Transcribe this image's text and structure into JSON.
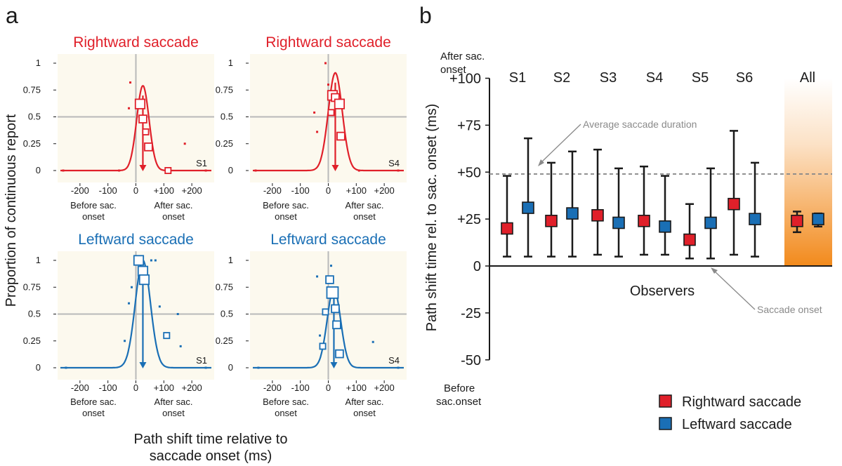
{
  "panel_a": {
    "letter": "a",
    "ylabel": "Proportion of continuous report",
    "xlabel_line1": "Path shift time relative to",
    "xlabel_line2": "saccade onset (ms)",
    "before_line1": "Before sac.",
    "before_line2": "onset",
    "after_line1": "After sac.",
    "after_line2": "onset"
  },
  "panel_b": {
    "letter": "b",
    "ylabel": "Path shift time rel. to sac. onset (ms)",
    "after_line1": "After sac.",
    "after_line2": "onset",
    "before_line1": "Before",
    "before_line2": "sac.onset",
    "xlabel": "Observers",
    "annotation_duration": "Average saccade duration",
    "annotation_onset": "Saccade onset",
    "legend_right": "Rightward saccade",
    "legend_left": "Leftward saccade"
  },
  "colors": {
    "rightward": "#e0202a",
    "leftward": "#1a6fb5",
    "panel_bg": "#fcf9ee",
    "all_gradient": "#f28a1c"
  },
  "chart_data": [
    {
      "type": "scatter",
      "title": "Rightward saccade",
      "observer": "S1",
      "xticks": [
        "-200",
        "-100",
        "0",
        "+100",
        "+200"
      ],
      "yticks": [
        "0",
        "0.25",
        "0.5",
        "0.75",
        "1"
      ],
      "xlim": [
        -280,
        280
      ],
      "ylim": [
        0,
        1
      ],
      "fit": {
        "peak_time": 25,
        "amplitude": 0.79,
        "sigma": 22
      },
      "points": [
        {
          "x": -260,
          "y": 0,
          "n": 1
        },
        {
          "x": -60,
          "y": 0,
          "n": 1
        },
        {
          "x": -20,
          "y": 0.82,
          "n": 1
        },
        {
          "x": -25,
          "y": 0.58,
          "n": 1
        },
        {
          "x": 15,
          "y": 0.62,
          "n": 4
        },
        {
          "x": 25,
          "y": 0.48,
          "n": 3
        },
        {
          "x": 35,
          "y": 0.36,
          "n": 2
        },
        {
          "x": 45,
          "y": 0.22,
          "n": 3
        },
        {
          "x": 115,
          "y": 0,
          "n": 2
        },
        {
          "x": 175,
          "y": 0.25,
          "n": 1
        },
        {
          "x": 250,
          "y": 0,
          "n": 1
        }
      ]
    },
    {
      "type": "scatter",
      "title": "Rightward saccade",
      "observer": "S4",
      "xticks": [
        "-200",
        "-100",
        "0",
        "+100",
        "+200"
      ],
      "yticks": [
        "0",
        "0.25",
        "0.5",
        "0.75",
        "1"
      ],
      "xlim": [
        -280,
        280
      ],
      "ylim": [
        0,
        1
      ],
      "fit": {
        "peak_time": 25,
        "amplitude": 0.91,
        "sigma": 25
      },
      "points": [
        {
          "x": -260,
          "y": 0,
          "n": 1
        },
        {
          "x": -50,
          "y": 0.54,
          "n": 1
        },
        {
          "x": -40,
          "y": 0.36,
          "n": 1
        },
        {
          "x": -10,
          "y": 1.0,
          "n": 1
        },
        {
          "x": 0,
          "y": 0.8,
          "n": 1
        },
        {
          "x": 10,
          "y": 0.54,
          "n": 2
        },
        {
          "x": 15,
          "y": 0.7,
          "n": 4
        },
        {
          "x": 25,
          "y": 0.68,
          "n": 3
        },
        {
          "x": 40,
          "y": 0.62,
          "n": 4
        },
        {
          "x": 45,
          "y": 0.32,
          "n": 3
        },
        {
          "x": 110,
          "y": 0,
          "n": 1
        },
        {
          "x": 250,
          "y": 0,
          "n": 1
        }
      ]
    },
    {
      "type": "scatter",
      "title": "Leftward saccade",
      "observer": "S1",
      "xticks": [
        "-200",
        "-100",
        "0",
        "+100",
        "+200"
      ],
      "yticks": [
        "0",
        "0.25",
        "0.5",
        "0.75",
        "1"
      ],
      "xlim": [
        -280,
        280
      ],
      "ylim": [
        0,
        1
      ],
      "fit": {
        "peak_time": 25,
        "amplitude": 1.0,
        "sigma": 27
      },
      "points": [
        {
          "x": -250,
          "y": 0,
          "n": 1
        },
        {
          "x": -40,
          "y": 0.25,
          "n": 1
        },
        {
          "x": -25,
          "y": 0.6,
          "n": 1
        },
        {
          "x": -15,
          "y": 0.75,
          "n": 1
        },
        {
          "x": 10,
          "y": 1.0,
          "n": 4
        },
        {
          "x": 25,
          "y": 0.9,
          "n": 4
        },
        {
          "x": 30,
          "y": 0.82,
          "n": 4
        },
        {
          "x": 55,
          "y": 1.0,
          "n": 1
        },
        {
          "x": 70,
          "y": 1.0,
          "n": 1
        },
        {
          "x": 85,
          "y": 0.57,
          "n": 1
        },
        {
          "x": 110,
          "y": 0.3,
          "n": 2
        },
        {
          "x": 150,
          "y": 0.5,
          "n": 1
        },
        {
          "x": 160,
          "y": 0.2,
          "n": 1
        },
        {
          "x": 250,
          "y": 0,
          "n": 1
        }
      ]
    },
    {
      "type": "scatter",
      "title": "Leftward saccade",
      "observer": "S4",
      "xticks": [
        "-200",
        "-100",
        "0",
        "+100",
        "+200"
      ],
      "yticks": [
        "0",
        "0.25",
        "0.5",
        "0.75",
        "1"
      ],
      "xlim": [
        -280,
        280
      ],
      "ylim": [
        0,
        1
      ],
      "fit": {
        "peak_time": 20,
        "amplitude": 0.74,
        "sigma": 24
      },
      "points": [
        {
          "x": -250,
          "y": 0,
          "n": 1
        },
        {
          "x": -40,
          "y": 0.85,
          "n": 1
        },
        {
          "x": -30,
          "y": 0.3,
          "n": 1
        },
        {
          "x": -20,
          "y": 0.2,
          "n": 2
        },
        {
          "x": -10,
          "y": 0.52,
          "n": 2
        },
        {
          "x": 5,
          "y": 0.82,
          "n": 3
        },
        {
          "x": 10,
          "y": 0.95,
          "n": 1
        },
        {
          "x": 15,
          "y": 0.7,
          "n": 5
        },
        {
          "x": 25,
          "y": 0.55,
          "n": 3
        },
        {
          "x": 30,
          "y": 0.4,
          "n": 3
        },
        {
          "x": 40,
          "y": 0.13,
          "n": 3
        },
        {
          "x": 160,
          "y": 0.24,
          "n": 1
        },
        {
          "x": 250,
          "y": 0,
          "n": 1
        }
      ]
    },
    {
      "type": "scatter",
      "title": "",
      "xlabel": "Observers",
      "ylabel": "Path shift time rel. to sac. onset (ms)",
      "categories": [
        "S1",
        "S2",
        "S3",
        "S4",
        "S5",
        "S6",
        "All"
      ],
      "yticks": [
        "-50",
        "-25",
        "0",
        "+25",
        "+50",
        "+75",
        "+100"
      ],
      "ylim": [
        -50,
        100
      ],
      "reference_lines": [
        {
          "y": 49,
          "label": "Average saccade duration"
        },
        {
          "y": 0,
          "label": "Saccade onset"
        }
      ],
      "series": [
        {
          "name": "Rightward saccade",
          "values": [
            20,
            24,
            27,
            24,
            14,
            33,
            24
          ],
          "ci_low": [
            5,
            5,
            6,
            6,
            4,
            6,
            18
          ],
          "ci_high": [
            48,
            55,
            62,
            53,
            33,
            72,
            29
          ]
        },
        {
          "name": "Leftward saccade",
          "values": [
            31,
            28,
            23,
            21,
            23,
            25,
            25
          ],
          "ci_low": [
            5,
            5,
            5,
            6,
            4,
            5,
            21
          ],
          "ci_high": [
            68,
            61,
            52,
            48,
            52,
            55,
            28
          ]
        }
      ]
    }
  ]
}
